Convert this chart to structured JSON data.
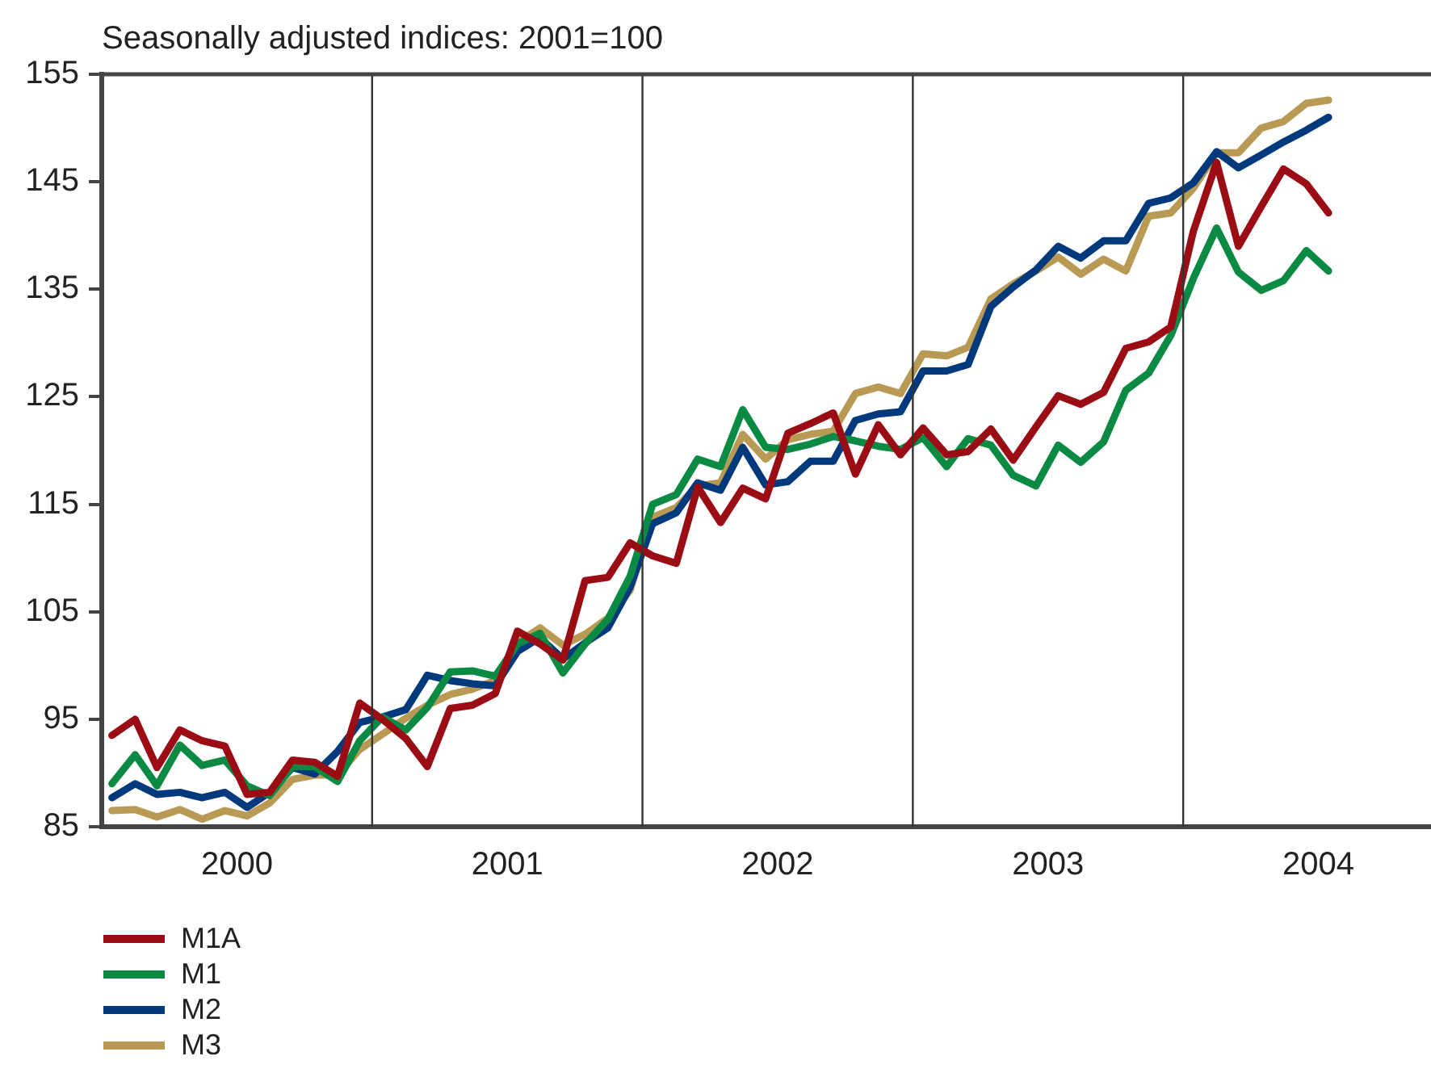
{
  "chart_data": {
    "type": "line",
    "ylabel": "Seasonally adjusted indices: 2001=100",
    "x": [
      "2000-01-15",
      "2000-02-15",
      "2000-03-15",
      "2000-04-15",
      "2000-05-15",
      "2000-06-15",
      "2000-07-15",
      "2000-08-15",
      "2000-09-15",
      "2000-10-15",
      "2000-11-15",
      "2000-12-15",
      "2001-01-15",
      "2001-02-15",
      "2001-03-15",
      "2001-04-15",
      "2001-05-15",
      "2001-06-15",
      "2001-07-15",
      "2001-08-15",
      "2001-09-15",
      "2001-10-15",
      "2001-11-15",
      "2001-12-15",
      "2002-01-15",
      "2002-02-15",
      "2002-03-15",
      "2002-04-15",
      "2002-05-15",
      "2002-06-15",
      "2002-07-15",
      "2002-08-15",
      "2002-09-15",
      "2002-10-15",
      "2002-11-15",
      "2002-12-15",
      "2003-01-15",
      "2003-02-15",
      "2003-03-15",
      "2003-04-15",
      "2003-05-15",
      "2003-06-15",
      "2003-07-15",
      "2003-08-15",
      "2003-09-15",
      "2003-10-15",
      "2003-11-15",
      "2003-12-15",
      "2004-01-15",
      "2004-02-15",
      "2004-03-15",
      "2004-04-15",
      "2004-05-15",
      "2004-06-15",
      "2004-07-15"
    ],
    "series": [
      {
        "name": "M1A",
        "color": "#9b0d14",
        "values": [
          93.5,
          95,
          90.5,
          94,
          93,
          92.5,
          88,
          88.2,
          91.2,
          91,
          89.7,
          96.5,
          95,
          93.2,
          90.6,
          96,
          96.3,
          97.4,
          103.2,
          102,
          100.5,
          107.9,
          108.2,
          111.4,
          110.2,
          109.5,
          116.6,
          113.3,
          116.5,
          115.5,
          121.6,
          122.5,
          123.5,
          117.8,
          122.4,
          119.6,
          122.1,
          119.6,
          119.9,
          122,
          119.1,
          122.2,
          125.1,
          124.3,
          125.4,
          129.5,
          130.1,
          131.5,
          140.4,
          146.8,
          139,
          142.7,
          146.2,
          144.8,
          142.1
        ]
      },
      {
        "name": "M1",
        "color": "#0a8a43",
        "values": [
          89,
          91.7,
          88.8,
          92.6,
          90.7,
          91.2,
          88.8,
          87.9,
          90.6,
          90.6,
          89.2,
          93,
          95.2,
          94,
          96.1,
          99.4,
          99.5,
          99,
          102,
          103,
          99.3,
          102,
          104.3,
          108.3,
          115,
          115.9,
          119.2,
          118.5,
          123.8,
          120.3,
          120.1,
          120.6,
          121.3,
          120.9,
          120.4,
          120.1,
          121.2,
          118.5,
          121.1,
          120.5,
          117.7,
          116.7,
          120.5,
          118.9,
          120.8,
          125.6,
          127.2,
          130.7,
          136,
          140.7,
          136.6,
          134.9,
          135.8,
          138.6,
          136.7
        ]
      },
      {
        "name": "M2",
        "color": "#003a7d",
        "values": [
          87.7,
          89,
          88,
          88.2,
          87.7,
          88.2,
          86.8,
          88.2,
          90.5,
          89.9,
          92,
          94.7,
          95.2,
          95.9,
          99.1,
          98.6,
          98.3,
          98.1,
          101.3,
          102.6,
          100.6,
          102.1,
          103.5,
          107.3,
          113.2,
          114.2,
          117,
          116.3,
          120.3,
          116.8,
          117.1,
          119,
          119,
          122.8,
          123.4,
          123.6,
          127.4,
          127.4,
          128,
          133.4,
          135.2,
          136.8,
          139,
          137.9,
          139.5,
          139.5,
          143,
          143.5,
          144.9,
          147.8,
          146.3,
          147.5,
          148.7,
          149.8,
          151
        ]
      },
      {
        "name": "M3",
        "color": "#b99a55",
        "values": [
          86.5,
          86.6,
          85.9,
          86.6,
          85.7,
          86.5,
          86,
          87.2,
          89.4,
          89.8,
          89.8,
          92.2,
          93.6,
          95.1,
          96.3,
          97.3,
          97.8,
          98.6,
          102.1,
          103.5,
          101.9,
          102.9,
          104.4,
          107,
          113.8,
          114.7,
          116.7,
          117,
          121.5,
          119.2,
          121,
          121.5,
          121.8,
          125.3,
          125.9,
          125.3,
          129,
          128.8,
          129.6,
          134.1,
          135.5,
          136.7,
          138,
          136.4,
          137.8,
          136.7,
          141.8,
          142.1,
          144.4,
          147.7,
          147.7,
          150,
          150.6,
          152.3,
          152.6
        ]
      }
    ],
    "xlim": [
      "2000-01-01",
      "2004-12-01"
    ],
    "xticks": [
      {
        "value": "2000-07-01",
        "label": "2000"
      },
      {
        "value": "2001-07-01",
        "label": "2001"
      },
      {
        "value": "2002-07-01",
        "label": "2002"
      },
      {
        "value": "2003-07-01",
        "label": "2003"
      },
      {
        "value": "2004-07-01",
        "label": "2004"
      }
    ],
    "ylim": [
      85,
      155
    ],
    "yticks": [
      85,
      95,
      105,
      115,
      125,
      135,
      145,
      155
    ],
    "ref_lines": [
      {
        "axis": "x",
        "value": "2001-01-01",
        "color": "#333333"
      },
      {
        "axis": "x",
        "value": "2002-01-01",
        "color": "#333333"
      },
      {
        "axis": "x",
        "value": "2003-01-01",
        "color": "#333333"
      },
      {
        "axis": "x",
        "value": "2004-01-01",
        "color": "#333333"
      }
    ],
    "grid": false,
    "legend": "bottom left",
    "marker": "none",
    "line_style": "solid"
  }
}
